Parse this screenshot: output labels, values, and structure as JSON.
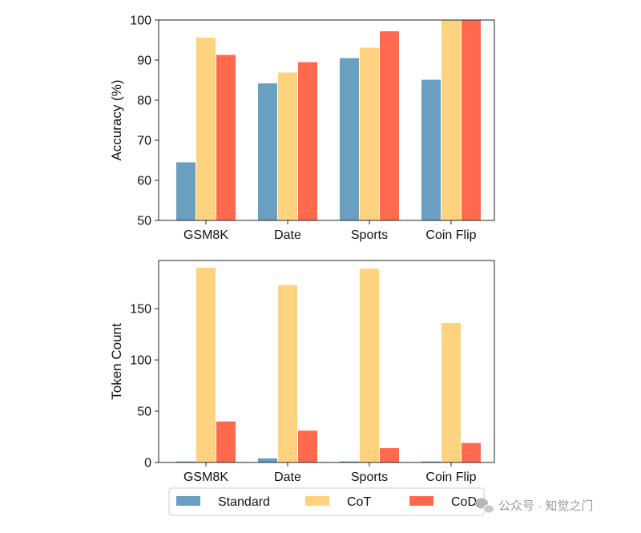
{
  "chart_data": [
    {
      "type": "bar",
      "categories": [
        "GSM8K",
        "Date",
        "Sports",
        "Coin Flip"
      ],
      "series": [
        {
          "name": "Standard",
          "values": [
            64.5,
            84.2,
            90.5,
            85.1
          ]
        },
        {
          "name": "CoT",
          "values": [
            95.6,
            86.9,
            93.1,
            100.0
          ]
        },
        {
          "name": "CoD",
          "values": [
            91.3,
            89.5,
            97.2,
            100.0
          ]
        }
      ],
      "ylabel": "Accuracy (%)",
      "ylim": [
        50,
        100
      ],
      "yticks": [
        50,
        60,
        70,
        80,
        90,
        100
      ],
      "grid": false
    },
    {
      "type": "bar",
      "categories": [
        "GSM8K",
        "Date",
        "Sports",
        "Coin Flip"
      ],
      "series": [
        {
          "name": "Standard",
          "values": [
            1,
            4,
            1,
            1
          ]
        },
        {
          "name": "CoT",
          "values": [
            190,
            173,
            189,
            136
          ]
        },
        {
          "name": "CoD",
          "values": [
            40,
            31,
            14,
            19
          ]
        }
      ],
      "ylabel": "Token Count",
      "ylim": [
        0,
        197
      ],
      "yticks": [
        0,
        50,
        100,
        150
      ],
      "grid": false
    }
  ],
  "legend": {
    "placement": "bottom-center",
    "entries": [
      "Standard",
      "CoT",
      "CoD"
    ]
  },
  "colors": {
    "Standard": "#6a9fc0",
    "CoT": "#fdd37f",
    "CoD": "#ff6a4f"
  },
  "watermark": {
    "icon": "wechat-icon",
    "text": "公众号 · 知觉之门"
  }
}
